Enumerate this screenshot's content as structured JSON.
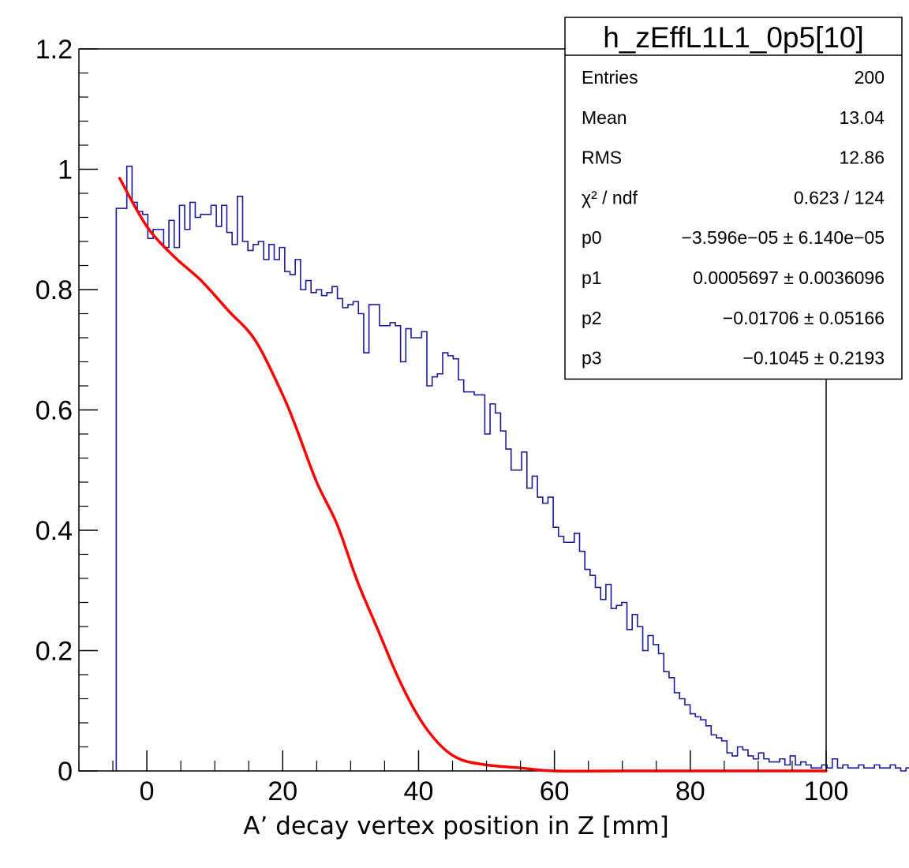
{
  "chart_data": {
    "type": "histogram",
    "xlabel": "A’ decay vertex position in Z [mm]",
    "ylabel": "",
    "xlim": [
      -10,
      100
    ],
    "ylim": [
      0,
      1.2
    ],
    "x_ticks": [
      "0",
      "20",
      "40",
      "60",
      "80",
      "100"
    ],
    "y_ticks": [
      "0",
      "0.2",
      "0.4",
      "0.6",
      "0.8",
      "1",
      "1.2"
    ],
    "x_tick_values": [
      0,
      20,
      40,
      60,
      80,
      100
    ],
    "y_tick_values": [
      0,
      0.2,
      0.4,
      0.6,
      0.8,
      1.0,
      1.2
    ],
    "grid": false,
    "histogram": {
      "name": "h_zEffL1L1_0p5[10]",
      "color": "#1a1a9c",
      "bin_start": -4.5,
      "bin_width": 0.775,
      "values": [
        0.935,
        0.935,
        1.005,
        0.945,
        0.93,
        0.925,
        0.885,
        0.9,
        0.9,
        0.87,
        0.915,
        0.87,
        0.94,
        0.9,
        0.945,
        0.92,
        0.925,
        0.925,
        0.94,
        0.905,
        0.94,
        0.895,
        0.875,
        0.955,
        0.88,
        0.865,
        0.875,
        0.88,
        0.85,
        0.875,
        0.85,
        0.87,
        0.83,
        0.825,
        0.85,
        0.8,
        0.815,
        0.795,
        0.8,
        0.79,
        0.795,
        0.805,
        0.785,
        0.77,
        0.775,
        0.78,
        0.76,
        0.695,
        0.775,
        0.775,
        0.74,
        0.74,
        0.745,
        0.74,
        0.68,
        0.735,
        0.72,
        0.72,
        0.73,
        0.64,
        0.655,
        0.66,
        0.695,
        0.69,
        0.685,
        0.65,
        0.63,
        0.63,
        0.625,
        0.625,
        0.56,
        0.61,
        0.595,
        0.565,
        0.535,
        0.5,
        0.5,
        0.53,
        0.47,
        0.49,
        0.455,
        0.445,
        0.455,
        0.405,
        0.39,
        0.38,
        0.38,
        0.395,
        0.365,
        0.335,
        0.325,
        0.305,
        0.285,
        0.31,
        0.27,
        0.275,
        0.28,
        0.235,
        0.26,
        0.24,
        0.2,
        0.225,
        0.21,
        0.195,
        0.165,
        0.155,
        0.13,
        0.12,
        0.11,
        0.095,
        0.09,
        0.085,
        0.075,
        0.06,
        0.055,
        0.05,
        0.03,
        0.025,
        0.04,
        0.035,
        0.025,
        0.02,
        0.03,
        0.02,
        0.015,
        0.015,
        0.02,
        0.01,
        0.025,
        0.01,
        0.015,
        0.01,
        0.005,
        0.005,
        0.01,
        0.005,
        0.02,
        0.005,
        0.01,
        0.005,
        0.005,
        0.01,
        0.005,
        0.005,
        0.01,
        0.005,
        0.005,
        0.01,
        0.005,
        0,
        0.005,
        0,
        0,
        0.015,
        0,
        0,
        0.005,
        0.005,
        0,
        0.01,
        0.005,
        0,
        0,
        0.005,
        0,
        0,
        0.005,
        0,
        0,
        0.005,
        0,
        0,
        0.01,
        0,
        0.005,
        0,
        0,
        0.005,
        0,
        0.01,
        0.005,
        0,
        0.01,
        0,
        0,
        0,
        0,
        0,
        0,
        0,
        0,
        0,
        0.005,
        0,
        0.01,
        0,
        0,
        0,
        0,
        0,
        0,
        0,
        0,
        0,
        0,
        0,
        0,
        0
      ]
    },
    "fit": {
      "color": "#ff0000",
      "x_range": [
        -4,
        100
      ],
      "points": [
        [
          -4,
          0.985
        ],
        [
          0,
          0.905
        ],
        [
          4,
          0.855
        ],
        [
          8,
          0.815
        ],
        [
          12,
          0.765
        ],
        [
          16,
          0.715
        ],
        [
          20,
          0.625
        ],
        [
          22,
          0.57
        ],
        [
          25,
          0.48
        ],
        [
          28,
          0.41
        ],
        [
          31,
          0.315
        ],
        [
          34,
          0.235
        ],
        [
          37,
          0.155
        ],
        [
          40,
          0.09
        ],
        [
          43,
          0.045
        ],
        [
          46,
          0.02
        ],
        [
          50,
          0.01
        ],
        [
          55,
          0.005
        ],
        [
          60,
          0.0
        ],
        [
          70,
          0.0
        ],
        [
          80,
          0.0
        ],
        [
          90,
          0.0
        ],
        [
          100,
          0.0
        ]
      ]
    },
    "stats_box": {
      "title": "h_zEffL1L1_0p5[10]",
      "rows": [
        {
          "label": "Entries",
          "value": "200"
        },
        {
          "label": "Mean",
          "value": "13.04"
        },
        {
          "label": "RMS",
          "value": "12.86"
        },
        {
          "label": "χ² / ndf",
          "value": "0.623 / 124"
        },
        {
          "label": "p0",
          "value": "−3.596e−05 ± 6.140e−05"
        },
        {
          "label": "p1",
          "value": "0.0005697 ± 0.0036096"
        },
        {
          "label": "p2",
          "value": "−0.01706 ± 0.05166"
        },
        {
          "label": "p3",
          "value": "−0.1045 ± 0.2193"
        }
      ]
    }
  }
}
